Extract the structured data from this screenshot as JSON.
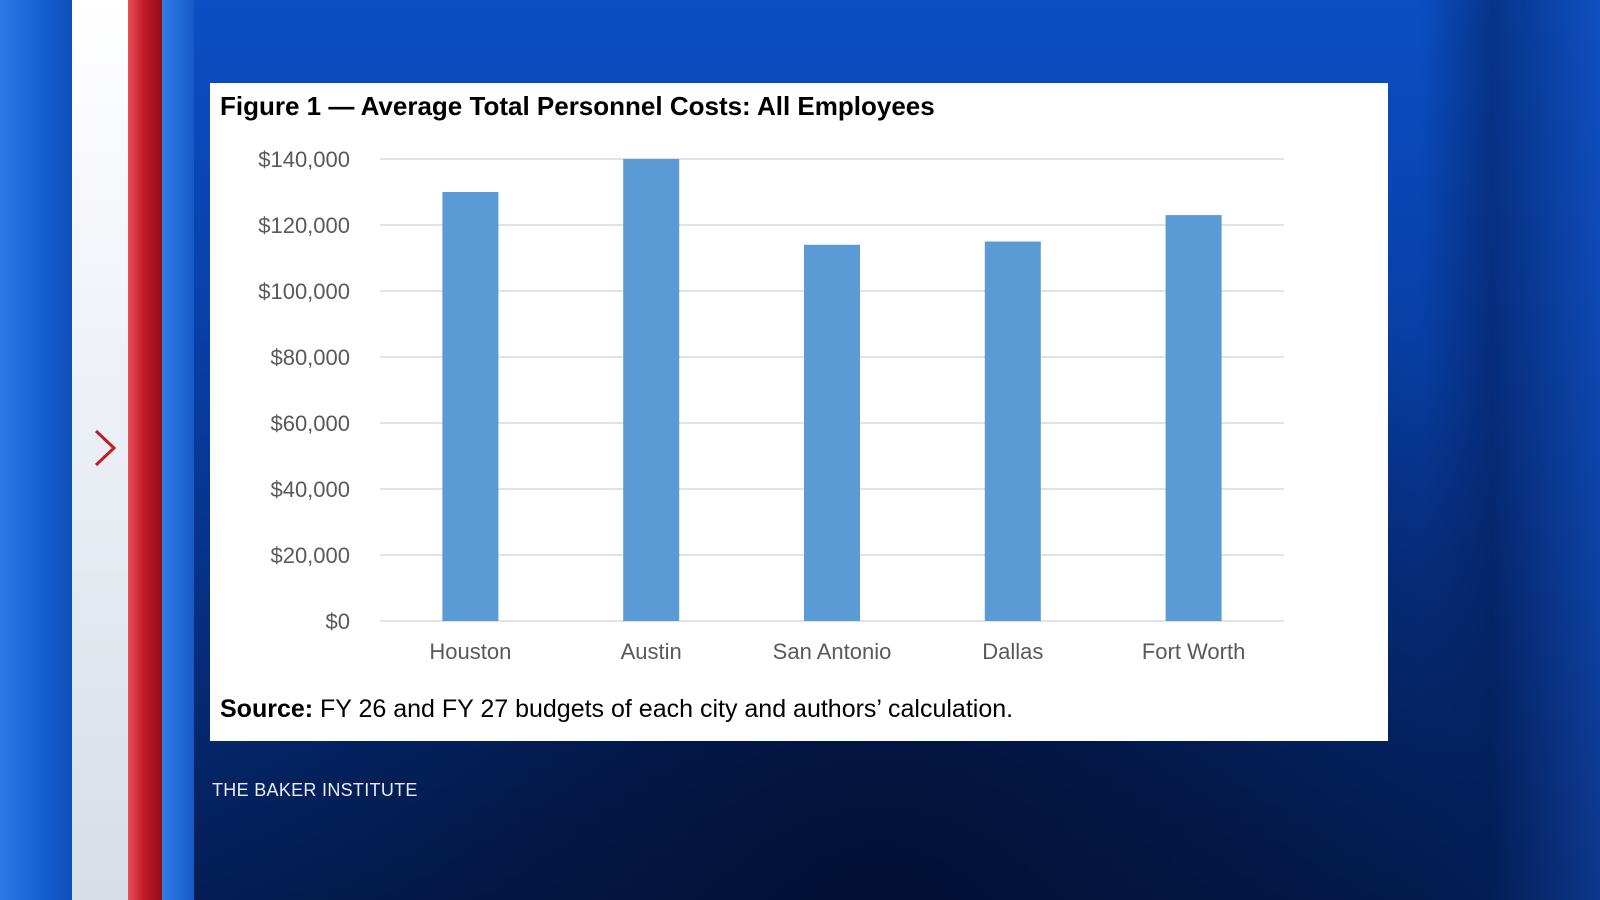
{
  "page": {
    "accent_red": "#c21b2a",
    "background_blue": "#0840a8"
  },
  "nav": {
    "next_icon": "chevron-right-icon"
  },
  "figure": {
    "title": "Figure 1 — Average Total Personnel Costs: All Employees",
    "source_label": "Source:",
    "source_text": " FY 26 and FY 27 budgets of each city and authors’ calculation."
  },
  "brand": {
    "text": "THE BAKER INSTITUTE"
  },
  "chart_data": {
    "type": "bar",
    "title": "Figure 1 — Average Total Personnel Costs: All Employees",
    "categories": [
      "Houston",
      "Austin",
      "San Antonio",
      "Dallas",
      "Fort Worth"
    ],
    "values": [
      130000,
      140000,
      114000,
      115000,
      123000
    ],
    "yticks": [
      0,
      20000,
      40000,
      60000,
      80000,
      100000,
      120000,
      140000
    ],
    "ytick_labels": [
      "$0",
      "$20,000",
      "$40,000",
      "$60,000",
      "$80,000",
      "$100,000",
      "$120,000",
      "$140,000"
    ],
    "ylim": [
      0,
      140000
    ],
    "xlabel": "",
    "ylabel": "",
    "grid": true,
    "legend": "none",
    "bar_color": "#5b9bd5"
  }
}
